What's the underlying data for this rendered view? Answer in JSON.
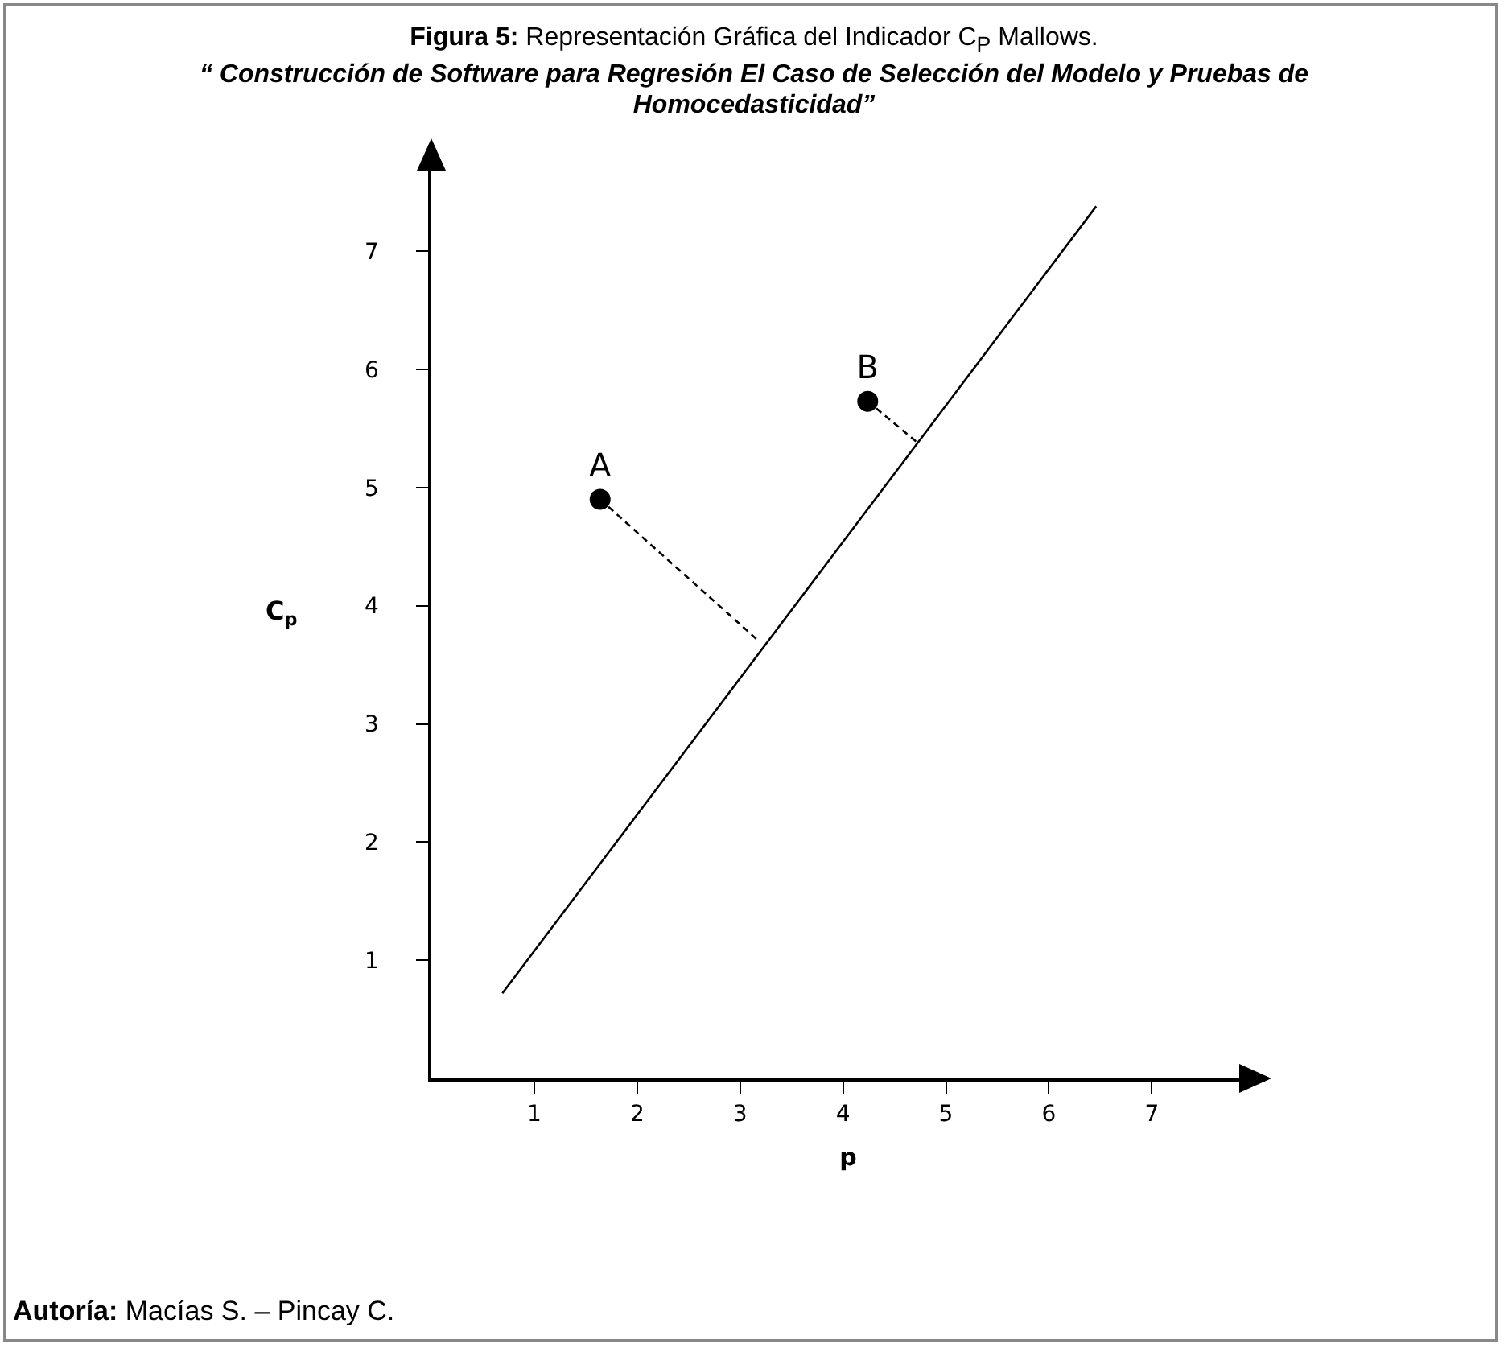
{
  "chart_data": {
    "type": "scatter",
    "title": "Figura 5: Representación Gráfica del Indicador C$_{P}$ Mallows.",
    "subtitle": "“ Construcción de Software para Regresión El Caso de Selección del Modelo y Pruebas de Homocedasticidad”",
    "xlabel": "p",
    "ylabel": "C$_{p}$",
    "annotations": [
      "Autoría: Macías S. – Pincay C."
    ],
    "xlim": [
      0,
      8.1
    ],
    "ylim": [
      0,
      7.9
    ],
    "xticks": [
      1,
      2,
      3,
      4,
      5,
      6,
      7
    ],
    "yticks": [
      1,
      2,
      3,
      4,
      5,
      6,
      7
    ],
    "grid": false,
    "series": [
      {
        "type": "line",
        "color": "#000000",
        "line_style": "solid",
        "marker": "none",
        "x": [
          0.69,
          6.46
        ],
        "values": [
          0.72,
          7.38
        ]
      },
      {
        "type": "line",
        "color": "#000000",
        "line_style": "dashed",
        "marker": "none",
        "x": [
          1.64,
          3.17
        ],
        "values": [
          4.9,
          3.71
        ]
      },
      {
        "type": "line",
        "color": "#000000",
        "line_style": "dashed",
        "marker": "none",
        "x": [
          4.24,
          4.71
        ],
        "values": [
          5.73,
          5.39
        ]
      },
      {
        "name": "A",
        "color": "#000000",
        "marker": "circle",
        "x": [
          1.64
        ],
        "values": [
          4.9
        ]
      },
      {
        "name": "B",
        "color": "#000000",
        "marker": "circle",
        "x": [
          4.24
        ],
        "values": [
          5.73
        ]
      }
    ]
  }
}
